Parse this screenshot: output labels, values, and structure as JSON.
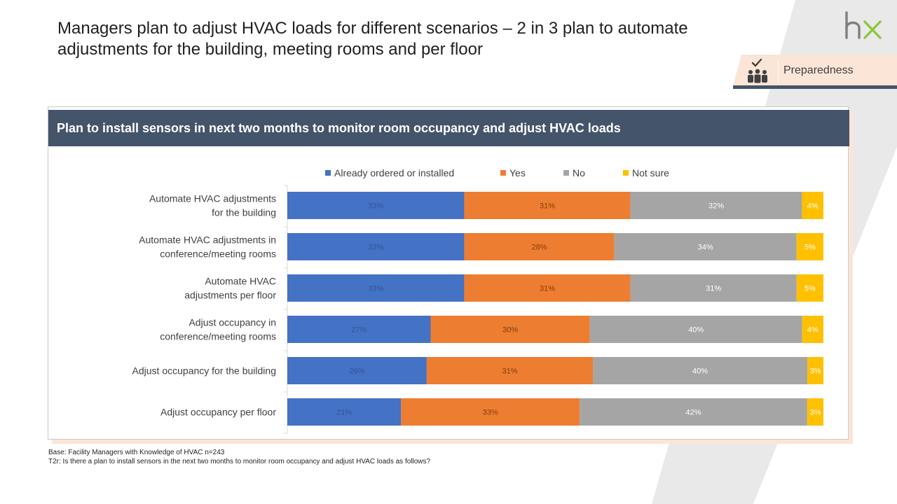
{
  "slide": {
    "title": "Managers plan to adjust HVAC loads for different scenarios – 2 in 3 plan to automate adjustments for the building, meeting rooms and per floor",
    "logo_text": "hx",
    "badge_label": "Preparedness"
  },
  "panel": {
    "header": "Plan to install sensors in next two months to monitor room occupancy and adjust HVAC loads"
  },
  "chart_data": {
    "type": "bar",
    "orientation": "horizontal",
    "stacked": true,
    "legend_position": "top",
    "categories": [
      [
        "Automate HVAC adjustments",
        "for the building"
      ],
      [
        "Automate HVAC adjustments in",
        "conference/meeting rooms"
      ],
      [
        "Automate HVAC",
        "adjustments per floor"
      ],
      [
        "Adjust occupancy in",
        "conference/meeting rooms"
      ],
      [
        "Adjust occupancy for the building"
      ],
      [
        "Adjust occupancy per floor"
      ]
    ],
    "series": [
      {
        "name": "Already ordered or installed",
        "color": "#4472c4",
        "label_color": "#2f5597",
        "values": [
          33,
          33,
          33,
          27,
          26,
          21
        ]
      },
      {
        "name": "Yes",
        "color": "#ed7d31",
        "label_color": "#843c0c",
        "values": [
          31,
          28,
          31,
          30,
          31,
          33
        ]
      },
      {
        "name": "No",
        "color": "#a5a5a5",
        "label_color": "#ffffff",
        "values": [
          32,
          34,
          31,
          40,
          40,
          42
        ]
      },
      {
        "name": "Not sure",
        "color": "#ffc000",
        "label_color": "#ffffff",
        "values": [
          4,
          5,
          5,
          4,
          3,
          3
        ]
      }
    ],
    "value_suffix": "%"
  },
  "footnotes": {
    "base": "Base: Facility Managers with Knowledge of HVAC n=243",
    "question": "T2r: Is there a plan to install sensors in the next two months to monitor room occupancy and adjust HVAC loads as follows?"
  },
  "colors": {
    "header_bg": "#44546a",
    "badge_bg": "#fbe5d6",
    "badge_border": "#44546a",
    "logo_gray": "#7f7f7f",
    "logo_green": "#8dc63f"
  }
}
